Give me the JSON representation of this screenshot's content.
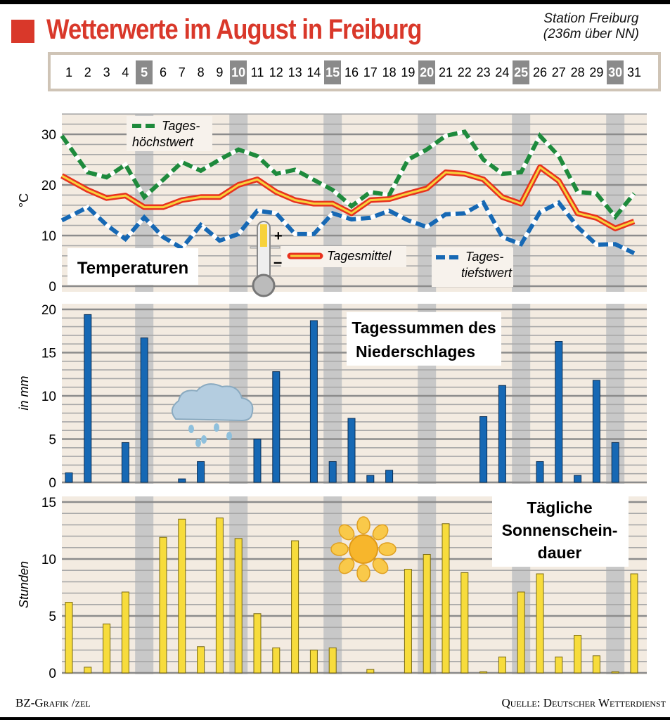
{
  "header": {
    "title": "Wetterwerte im August in Freiburg",
    "station_line1": "Station Freiburg",
    "station_line2": "(236m über NN)"
  },
  "days": [
    "1",
    "2",
    "3",
    "4",
    "5",
    "6",
    "7",
    "8",
    "9",
    "10",
    "11",
    "12",
    "13",
    "14",
    "15",
    "16",
    "17",
    "18",
    "19",
    "20",
    "21",
    "22",
    "23",
    "24",
    "25",
    "26",
    "27",
    "28",
    "29",
    "30",
    "31"
  ],
  "highlight_days": [
    5,
    10,
    15,
    20,
    25,
    30
  ],
  "footer": {
    "credit": "BZ-Grafik /zel",
    "source": "Quelle: Deutscher Wetterdienst"
  },
  "colors": {
    "title": "#d9382a",
    "max": "#1e8a3c",
    "mean_outer": "#e8321e",
    "mean_inner": "#f7d23c",
    "min": "#1668b4",
    "precip": "#1668b4",
    "sun": "#f7dc3c",
    "background": "#f3ebe1",
    "highlight": "#c8c8c8"
  },
  "chart_data": [
    {
      "type": "line",
      "title": "Temperaturen",
      "ylabel": "°C",
      "ylim": [
        0,
        35
      ],
      "yticks": [
        0,
        10,
        20,
        30
      ],
      "series": [
        {
          "name": "Tageshöchstwert",
          "label_line1": "Tages-",
          "label_line2": "höchstwert",
          "values": [
            29.7,
            22.5,
            21.5,
            24,
            17.6,
            21,
            24.5,
            22.8,
            25,
            27,
            25.7,
            22.2,
            23,
            21,
            19,
            15.8,
            18.6,
            18,
            25,
            27,
            29.7,
            30.5,
            25,
            22.2,
            22.5,
            29.7,
            25.7,
            18.6,
            18.3,
            13.7,
            18.3
          ]
        },
        {
          "name": "Tagesmittel",
          "values": [
            21.8,
            19,
            17.4,
            17.9,
            15.6,
            15.6,
            17,
            17.6,
            17.6,
            20,
            21.1,
            18.6,
            17,
            16.3,
            16.3,
            14.4,
            17,
            17.2,
            18.3,
            19.3,
            22.5,
            22.2,
            21.1,
            17.6,
            16.3,
            23.5,
            20.8,
            14.4,
            13.5,
            11.4,
            12.8
          ]
        },
        {
          "name": "Tagestiefstwert",
          "label_line1": "Tages-",
          "label_line2": "tiefstwert",
          "values": [
            13,
            15.6,
            12.1,
            9.3,
            13.6,
            9.7,
            7.5,
            12.1,
            9,
            10.3,
            14.9,
            14.4,
            10.3,
            10.3,
            14.4,
            13.2,
            13.5,
            14.9,
            13,
            11.7,
            14.2,
            14.4,
            16.5,
            9.7,
            8.3,
            14.6,
            16.5,
            11.7,
            8.2,
            8.3,
            6.5
          ]
        }
      ]
    },
    {
      "type": "bar",
      "title_line1": "Tagessummen des",
      "title_line2": "Niederschlages",
      "ylabel": "in mm",
      "ylim": [
        0,
        20
      ],
      "yticks": [
        0,
        5,
        10,
        15,
        20
      ],
      "values": [
        1.1,
        19.4,
        0,
        4.6,
        16.7,
        0,
        0.4,
        2.4,
        0,
        0,
        5,
        12.8,
        0,
        18.7,
        2.4,
        7.4,
        0.8,
        1.4,
        0,
        0,
        0,
        0,
        7.6,
        11.2,
        0,
        2.4,
        16.3,
        0.8,
        11.8,
        4.6,
        0
      ]
    },
    {
      "type": "bar",
      "title_line1": "Tägliche",
      "title_line2": "Sonnenschein-",
      "title_line3": "dauer",
      "ylabel": "Stunden",
      "ylim": [
        0,
        15
      ],
      "yticks": [
        0,
        5,
        10,
        15
      ],
      "values": [
        6.2,
        0.5,
        4.3,
        7.1,
        0,
        11.9,
        13.5,
        2.3,
        13.6,
        11.8,
        5.2,
        2.2,
        11.6,
        2,
        2.2,
        0,
        0.3,
        0,
        9.1,
        10.4,
        13.1,
        8.8,
        0.1,
        1.4,
        7.1,
        8.7,
        1.4,
        3.3,
        1.5,
        0.1,
        8.7
      ]
    }
  ]
}
